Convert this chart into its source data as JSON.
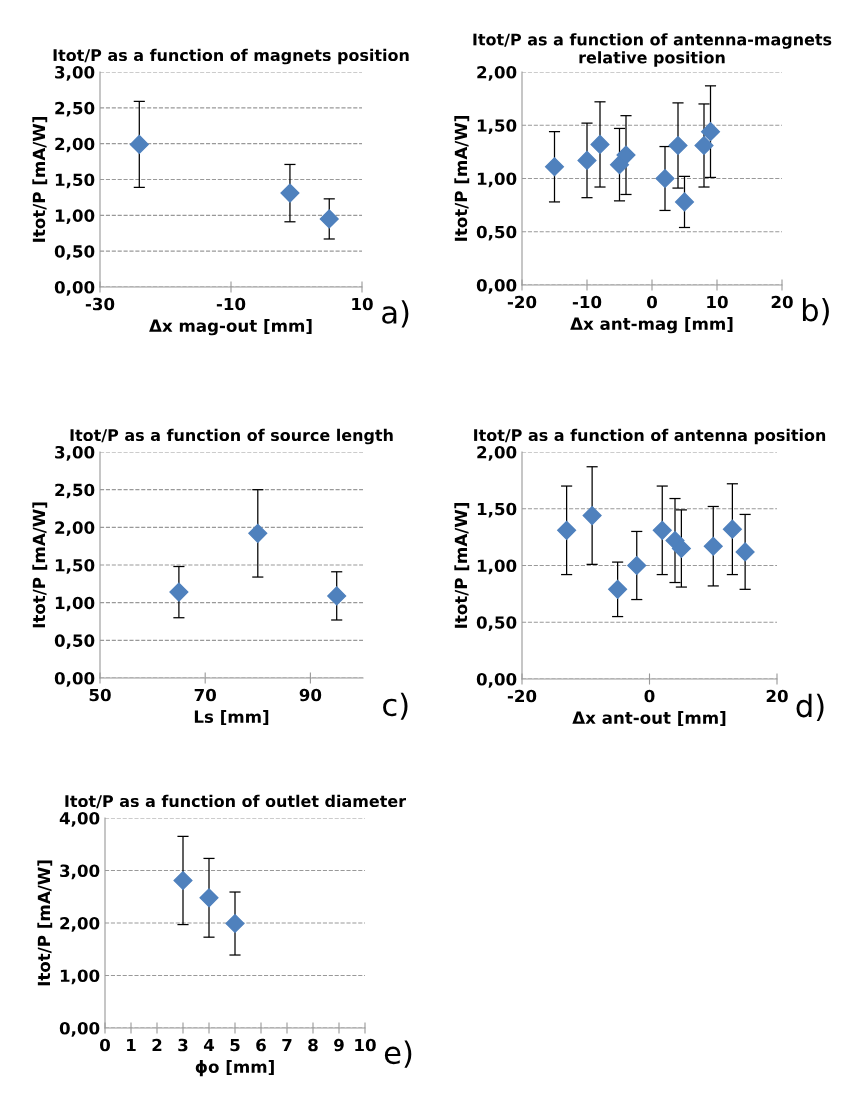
{
  "chart_data": [
    {
      "type": "scatter",
      "title": "Itot/P as a function of magnets position",
      "xlabel": "Δx mag-out [mm]",
      "ylabel": "Itot/P [mA/W]",
      "annotations": [
        "a)"
      ],
      "marker": "diamond",
      "grid": "y",
      "xlim": [
        -30,
        10
      ],
      "xticks": [
        -30,
        -10,
        10
      ],
      "ylim": [
        0,
        3
      ],
      "yticks": [
        {
          "value": 0,
          "label": "0,00"
        },
        {
          "value": 0.5,
          "label": "0,50"
        },
        {
          "value": 1,
          "label": "1,00"
        },
        {
          "value": 1.5,
          "label": "1,50"
        },
        {
          "value": 2,
          "label": "2,00"
        },
        {
          "value": 2.5,
          "label": "2,50"
        },
        {
          "value": 3,
          "label": "3,00"
        }
      ],
      "series": [
        {
          "color": "#4f81bd",
          "x": [
            -24,
            -1,
            5
          ],
          "values": [
            1.99,
            1.31,
            0.95
          ],
          "errors": [
            0.6,
            0.4,
            0.28
          ]
        }
      ]
    },
    {
      "type": "scatter",
      "title": "Itot/P as a function of antenna-magnets relative position",
      "xlabel": "Δx ant-mag [mm]",
      "ylabel": "Itot/P [mA/W]",
      "annotations": [
        "b)"
      ],
      "marker": "diamond",
      "grid": "y",
      "xlim": [
        -20,
        20
      ],
      "xticks": [
        -20,
        -10,
        0,
        10,
        20
      ],
      "ylim": [
        0,
        2
      ],
      "yticks": [
        {
          "value": 0,
          "label": "0,00"
        },
        {
          "value": 0.5,
          "label": "0,50"
        },
        {
          "value": 1,
          "label": "1,00"
        },
        {
          "value": 1.5,
          "label": "1,50"
        },
        {
          "value": 2,
          "label": "2,00"
        }
      ],
      "series": [
        {
          "color": "#4f81bd",
          "x": [
            -15,
            -10,
            -8,
            -5,
            -4,
            2,
            4,
            5,
            8,
            9
          ],
          "values": [
            1.11,
            1.17,
            1.32,
            1.13,
            1.22,
            1.0,
            1.31,
            0.78,
            1.31,
            1.44
          ],
          "errors": [
            0.33,
            0.35,
            0.4,
            0.34,
            0.37,
            0.3,
            0.4,
            0.24,
            0.39,
            0.43
          ]
        }
      ]
    },
    {
      "type": "scatter",
      "title": "Itot/P as a function of source length",
      "xlabel": "Ls [mm]",
      "ylabel": "Itot/P [mA/W]",
      "annotations": [
        "c)"
      ],
      "marker": "diamond",
      "grid": "y",
      "xlim": [
        50,
        100
      ],
      "xticks": [
        50,
        70,
        90
      ],
      "ylim": [
        0,
        3
      ],
      "yticks": [
        {
          "value": 0,
          "label": "0,00"
        },
        {
          "value": 0.5,
          "label": "0,50"
        },
        {
          "value": 1,
          "label": "1,00"
        },
        {
          "value": 1.5,
          "label": "1,50"
        },
        {
          "value": 2,
          "label": "2,00"
        },
        {
          "value": 2.5,
          "label": "2,50"
        },
        {
          "value": 3,
          "label": "3,00"
        }
      ],
      "series": [
        {
          "color": "#4f81bd",
          "x": [
            65,
            80,
            95
          ],
          "values": [
            1.14,
            1.92,
            1.09
          ],
          "errors": [
            0.34,
            0.58,
            0.32
          ]
        }
      ]
    },
    {
      "type": "scatter",
      "title": "Itot/P as a function of antenna position",
      "xlabel": "Δx ant-out [mm]",
      "ylabel": "Itot/P [mA/W]",
      "annotations": [
        "d)"
      ],
      "marker": "diamond",
      "grid": "y",
      "xlim": [
        -20,
        20
      ],
      "xticks": [
        -20,
        0,
        20
      ],
      "ylim": [
        0,
        2
      ],
      "yticks": [
        {
          "value": 0,
          "label": "0,00"
        },
        {
          "value": 0.5,
          "label": "0,50"
        },
        {
          "value": 1,
          "label": "1,00"
        },
        {
          "value": 1.5,
          "label": "1,50"
        },
        {
          "value": 2,
          "label": "2,00"
        }
      ],
      "series": [
        {
          "color": "#4f81bd",
          "x": [
            -13,
            -9,
            -5,
            -2,
            2,
            4,
            5,
            10,
            13,
            15
          ],
          "values": [
            1.31,
            1.44,
            0.79,
            1.0,
            1.31,
            1.22,
            1.15,
            1.17,
            1.32,
            1.12
          ],
          "errors": [
            0.39,
            0.43,
            0.24,
            0.3,
            0.39,
            0.37,
            0.34,
            0.35,
            0.4,
            0.33
          ]
        }
      ]
    },
    {
      "type": "scatter",
      "title": "Itot/P as a function of outlet diameter",
      "xlabel": "ϕo [mm]",
      "ylabel": "Itot/P [mA/W]",
      "annotations": [
        "e)"
      ],
      "marker": "diamond",
      "grid": "y",
      "xlim": [
        0,
        10
      ],
      "xticks": [
        0,
        1,
        2,
        3,
        4,
        5,
        6,
        7,
        8,
        9,
        10
      ],
      "ylim": [
        0,
        4
      ],
      "yticks": [
        {
          "value": 0,
          "label": "0,00"
        },
        {
          "value": 1,
          "label": "1,00"
        },
        {
          "value": 2,
          "label": "2,00"
        },
        {
          "value": 3,
          "label": "3,00"
        },
        {
          "value": 4,
          "label": "4,00"
        }
      ],
      "series": [
        {
          "color": "#4f81bd",
          "x": [
            3,
            4,
            5
          ],
          "values": [
            2.81,
            2.48,
            1.99
          ],
          "errors": [
            0.84,
            0.75,
            0.6
          ]
        }
      ]
    }
  ]
}
